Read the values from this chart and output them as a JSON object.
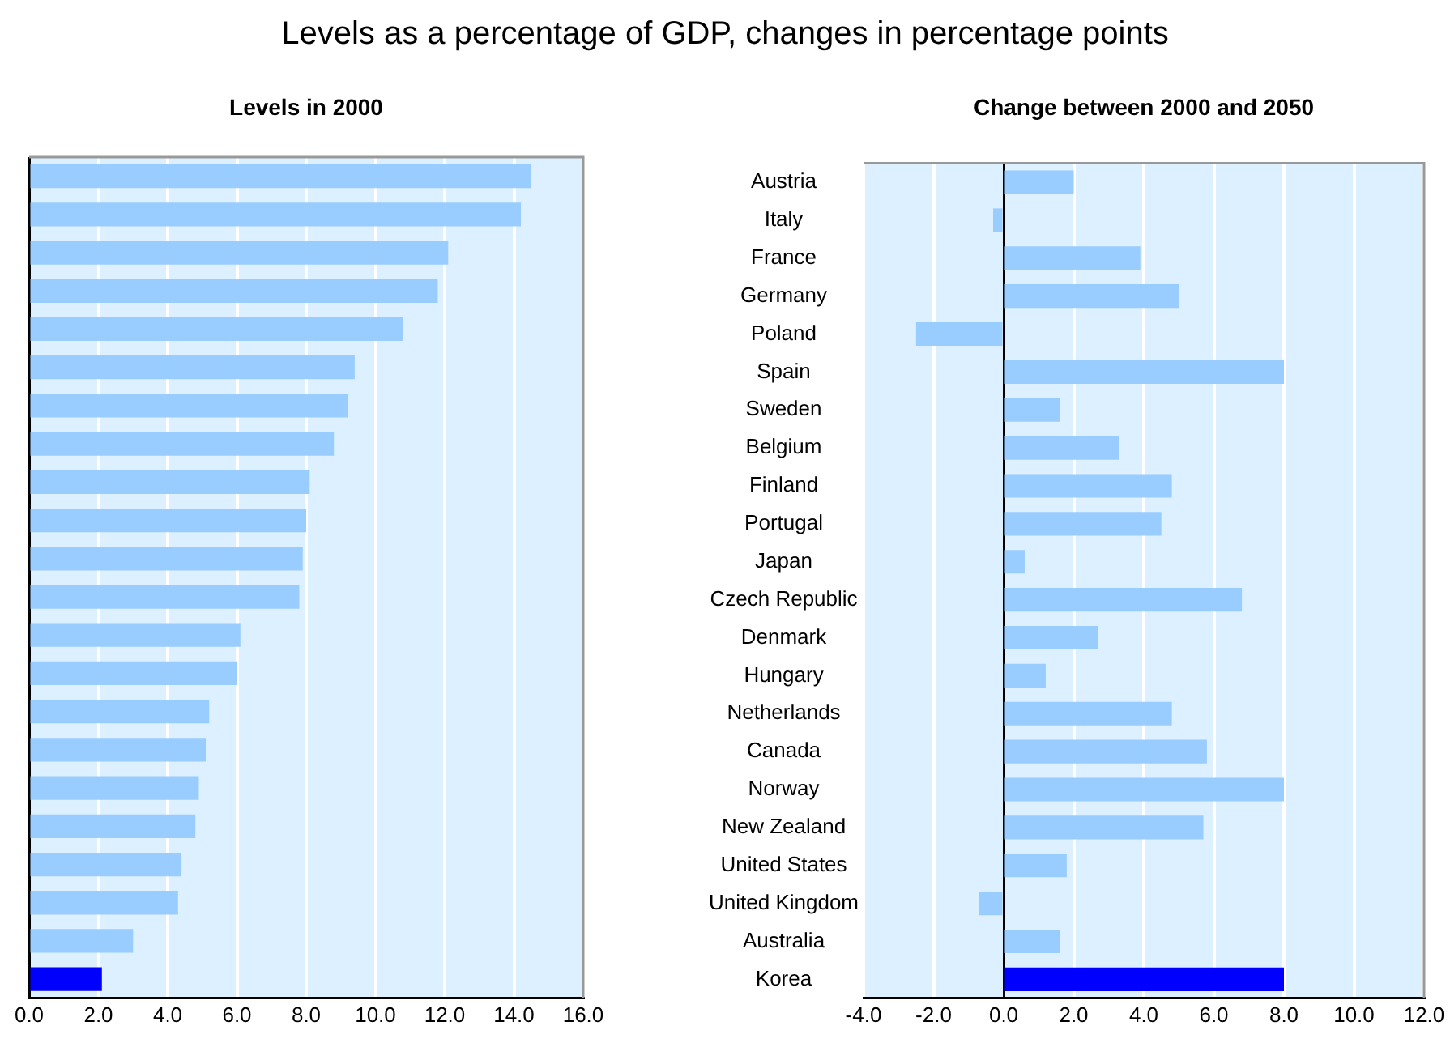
{
  "chart_data": [
    {
      "type": "bar",
      "orientation": "horizontal",
      "title": "Levels as a percentage of GDP, changes in percentage points",
      "subtitle": "Levels in 2000",
      "tick_labels": "x",
      "grid": "x",
      "categories": [
        null,
        null,
        null,
        null,
        null,
        null,
        null,
        null,
        null,
        null,
        null,
        null,
        null,
        null,
        null,
        null,
        null,
        null,
        null,
        null,
        null,
        null
      ],
      "values": [
        14.5,
        14.2,
        12.1,
        11.8,
        10.8,
        9.4,
        9.2,
        8.8,
        8.1,
        8.0,
        7.9,
        7.8,
        6.1,
        6.0,
        5.2,
        5.1,
        4.9,
        4.8,
        4.4,
        4.3,
        3.0,
        2.1
      ],
      "colors": [
        "#99ccff",
        "#99ccff",
        "#99ccff",
        "#99ccff",
        "#99ccff",
        "#99ccff",
        "#99ccff",
        "#99ccff",
        "#99ccff",
        "#99ccff",
        "#99ccff",
        "#99ccff",
        "#99ccff",
        "#99ccff",
        "#99ccff",
        "#99ccff",
        "#99ccff",
        "#99ccff",
        "#99ccff",
        "#99ccff",
        "#99ccff",
        "#0000ff"
      ],
      "xlim": [
        0,
        16
      ],
      "xticks": [
        {
          "value": 0,
          "label": "0.0"
        },
        {
          "value": 2,
          "label": "2.0"
        },
        {
          "value": 4,
          "label": "4.0"
        },
        {
          "value": 6,
          "label": "6.0"
        },
        {
          "value": 8,
          "label": "8.0"
        },
        {
          "value": 10,
          "label": "10.0"
        },
        {
          "value": 12,
          "label": "12.0"
        },
        {
          "value": 14,
          "label": "14.0"
        },
        {
          "value": 16,
          "label": "16.0"
        }
      ]
    },
    {
      "type": "bar",
      "orientation": "horizontal",
      "title": "Change between 2000 and 2050",
      "grid": "x",
      "categories": [
        "Austria",
        "Italy",
        "France",
        "Germany",
        "Poland",
        "Spain",
        "Sweden",
        "Belgium",
        "Finland",
        "Portugal",
        "Japan",
        "Czech Republic",
        "Denmark",
        "Hungary",
        "Netherlands",
        "Canada",
        "Norway",
        "New Zealand",
        "United States",
        "United Kingdom",
        "Australia",
        "Korea"
      ],
      "values": [
        2.0,
        -0.3,
        3.9,
        5.0,
        -2.5,
        8.0,
        1.6,
        3.3,
        4.8,
        4.5,
        0.6,
        6.8,
        2.7,
        1.2,
        4.8,
        5.8,
        8.0,
        5.7,
        1.8,
        -0.7,
        1.6,
        8.0
      ],
      "colors": [
        "#99ccff",
        "#99ccff",
        "#99ccff",
        "#99ccff",
        "#99ccff",
        "#99ccff",
        "#99ccff",
        "#99ccff",
        "#99ccff",
        "#99ccff",
        "#99ccff",
        "#99ccff",
        "#99ccff",
        "#99ccff",
        "#99ccff",
        "#99ccff",
        "#99ccff",
        "#99ccff",
        "#99ccff",
        "#99ccff",
        "#99ccff",
        "#0000ff"
      ],
      "xlim": [
        -4,
        12
      ],
      "xticks": [
        {
          "value": -4,
          "label": "-4.0"
        },
        {
          "value": -2,
          "label": "-2.0"
        },
        {
          "value": 0,
          "label": "0.0"
        },
        {
          "value": 2,
          "label": "2.0"
        },
        {
          "value": 4,
          "label": "4.0"
        },
        {
          "value": 6,
          "label": "6.0"
        },
        {
          "value": 8,
          "label": "8.0"
        },
        {
          "value": 10,
          "label": "10.0"
        },
        {
          "value": 12,
          "label": "12.0"
        }
      ]
    }
  ]
}
